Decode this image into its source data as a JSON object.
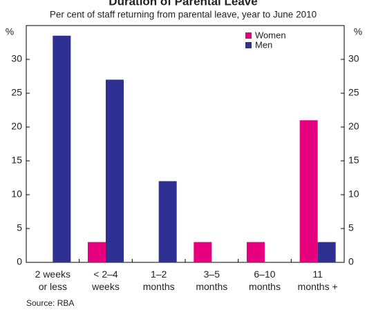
{
  "chart_data": {
    "type": "bar",
    "title": "Duration of Parental Leave",
    "subtitle": "Per cent of staff returning from parental leave, year to June 2010",
    "y_label": "%",
    "y2_label": "%",
    "categories": [
      [
        "2 weeks",
        "or less"
      ],
      [
        "< 2–4",
        "weeks"
      ],
      [
        "1–2",
        "months"
      ],
      [
        "3–5",
        "months"
      ],
      [
        "6–10",
        "months"
      ],
      [
        "11",
        "months +"
      ]
    ],
    "series": [
      {
        "name": "Women",
        "color": "#e6007e",
        "values": [
          0,
          3,
          0,
          3,
          3,
          21
        ]
      },
      {
        "name": "Men",
        "color": "#2e3192",
        "values": [
          33.5,
          27,
          12,
          0,
          0,
          3
        ]
      }
    ],
    "ylim": [
      0,
      35
    ],
    "yticks": [
      0,
      5,
      10,
      15,
      20,
      25,
      30
    ],
    "y2lim": [
      0,
      35
    ],
    "y2ticks": [
      0,
      5,
      10,
      15,
      20,
      25,
      30
    ],
    "legend": "upper right",
    "source": "Source: RBA"
  }
}
